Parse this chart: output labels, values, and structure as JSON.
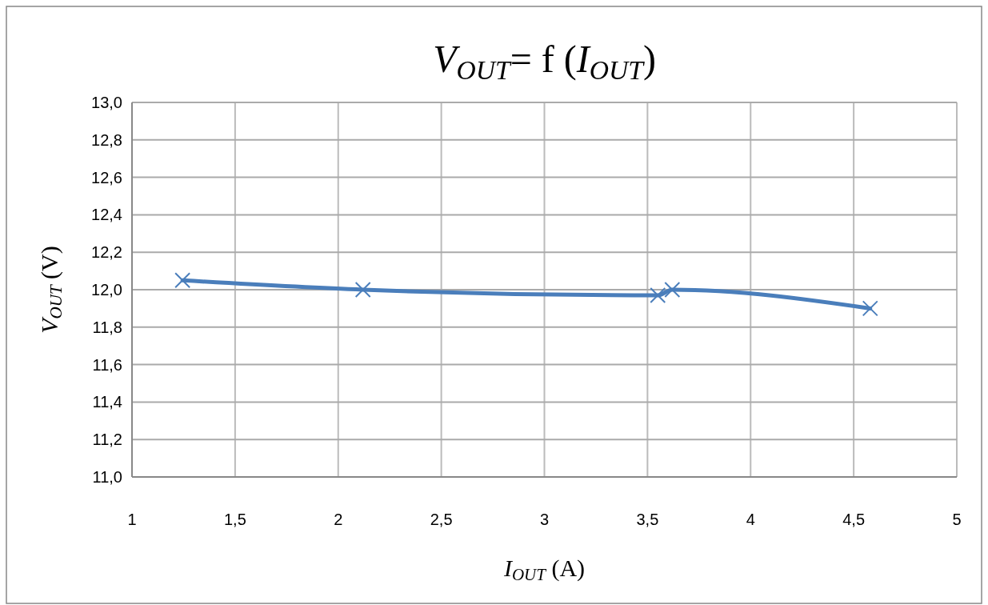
{
  "chart_data": {
    "type": "line",
    "title": "V$_{OUT}$= f (I$_{OUT}$)",
    "xlabel": "I$_{OUT}$ (A)",
    "ylabel": "V$_{OUT}$ (V)",
    "series": [
      {
        "color": "#4a7ebb",
        "x": [
          1.245,
          2.12,
          3.55,
          3.62,
          4.58
        ],
        "values": [
          12.05,
          12.0,
          11.97,
          12.0,
          11.9
        ]
      }
    ],
    "xlim": [
      1,
      5
    ],
    "ylim": [
      11,
      13
    ],
    "xticks": [
      1,
      {
        "value": 1.5,
        "label": "1,5"
      },
      2,
      {
        "value": 2.5,
        "label": "2,5"
      },
      3,
      {
        "value": 3.5,
        "label": "3,5"
      },
      4,
      {
        "value": 4.5,
        "label": "4,5"
      },
      5
    ],
    "yticks": [
      {
        "value": 11,
        "label": "11,0"
      },
      {
        "value": 11.2,
        "label": "11,2"
      },
      {
        "value": 11.4,
        "label": "11,4"
      },
      {
        "value": 11.6,
        "label": "11,6"
      },
      {
        "value": 11.8,
        "label": "11,8"
      },
      {
        "value": 12,
        "label": "12,0"
      },
      {
        "value": 12.2,
        "label": "12,2"
      },
      {
        "value": 12.4,
        "label": "12,4"
      },
      {
        "value": 12.6,
        "label": "12,6"
      },
      {
        "value": 12.8,
        "label": "12,8"
      },
      {
        "value": 13,
        "label": "13,0"
      }
    ],
    "grid": true,
    "marker": "cross",
    "line_style": "solid"
  }
}
